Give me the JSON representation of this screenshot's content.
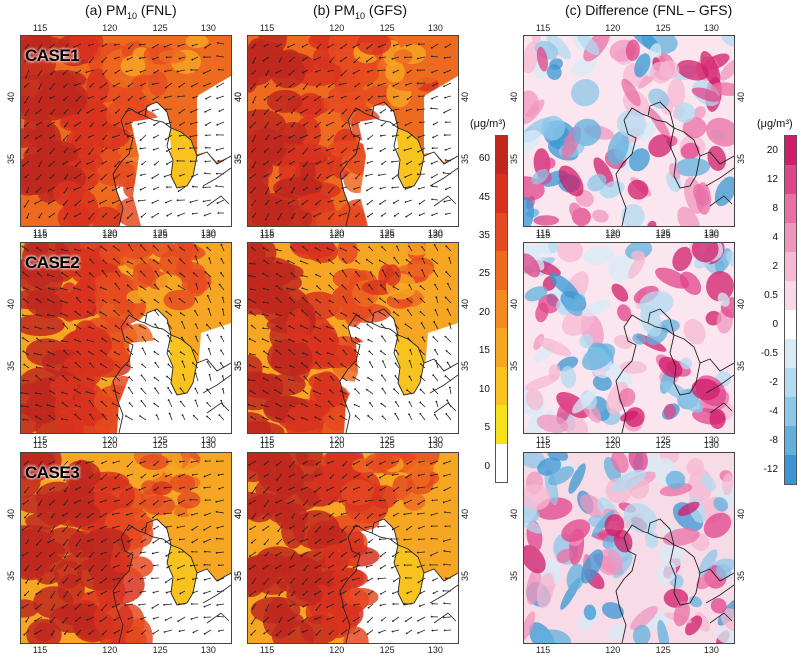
{
  "columns": [
    {
      "prefix": "(a) PM",
      "sub": "10",
      "suffix": " (FNL)"
    },
    {
      "prefix": "(b) PM",
      "sub": "10",
      "suffix": " (GFS)"
    },
    {
      "prefix": "(c) Difference (FNL – GFS)",
      "sub": "",
      "suffix": ""
    }
  ],
  "rows": [
    {
      "case": "CASE1"
    },
    {
      "case": "CASE2"
    },
    {
      "case": "CASE3"
    }
  ],
  "axes": {
    "lon_ticks": [
      "115",
      "120",
      "125",
      "130"
    ],
    "lat_ticks": [
      "40",
      "35"
    ]
  },
  "colorbar_pm10": {
    "title": "(μg/m³)",
    "labels": [
      "60",
      "45",
      "35",
      "25",
      "20",
      "15",
      "10",
      "5",
      "0"
    ],
    "colors": [
      "#c0281e",
      "#d8321f",
      "#e64a20",
      "#ee6a1f",
      "#f38a22",
      "#f6a623",
      "#f8c21f",
      "#f7e11c",
      "#ffffff"
    ]
  },
  "colorbar_diff": {
    "title": "(μg/m³)",
    "labels": [
      "20",
      "12",
      "8",
      "4",
      "2",
      "0.5",
      "0",
      "-0.5",
      "-2",
      "-4",
      "-8",
      "-12"
    ],
    "colors": [
      "#d01c6a",
      "#e0448a",
      "#ea6fa4",
      "#f195bd",
      "#f6b8d2",
      "#fad8e6",
      "#ffffff",
      "#d7ebf7",
      "#b3daf0",
      "#8cc6e8",
      "#62b0de",
      "#3a97d3"
    ]
  }
}
